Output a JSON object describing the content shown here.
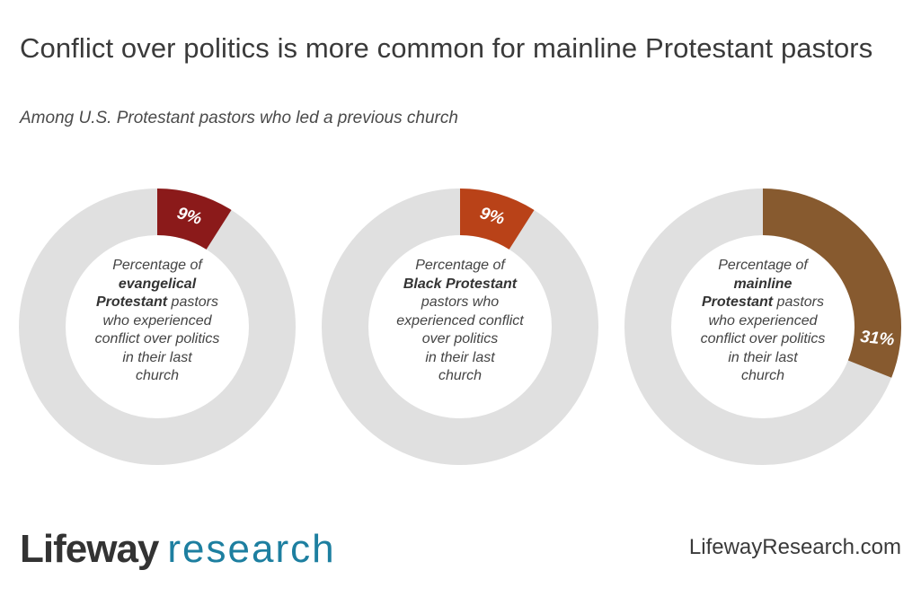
{
  "header": {
    "title": "Conflict over politics is more common for mainline Protestant pastors",
    "subtitle": "Among U.S. Protestant pastors who led a previous church"
  },
  "chart_data": [
    {
      "type": "pie",
      "variant": "donut",
      "value": 9,
      "value_label": "9%",
      "color": "#8b1a1a",
      "track_color": "#e0e0e0",
      "label_lines": [
        {
          "segs": [
            {
              "t": "Percentage of",
              "b": false
            }
          ]
        },
        {
          "segs": [
            {
              "t": "evangelical",
              "b": true
            }
          ]
        },
        {
          "segs": [
            {
              "t": "Protestant",
              "b": true
            },
            {
              "t": " pastors",
              "b": false
            }
          ]
        },
        {
          "segs": [
            {
              "t": "who experienced",
              "b": false
            }
          ]
        },
        {
          "segs": [
            {
              "t": "conflict over politics",
              "b": false
            }
          ]
        },
        {
          "segs": [
            {
              "t": "in their last",
              "b": false
            }
          ]
        },
        {
          "segs": [
            {
              "t": "church",
              "b": false
            }
          ]
        }
      ]
    },
    {
      "type": "pie",
      "variant": "donut",
      "value": 9,
      "value_label": "9%",
      "color": "#b94218",
      "track_color": "#e0e0e0",
      "label_lines": [
        {
          "segs": [
            {
              "t": "Percentage of",
              "b": false
            }
          ]
        },
        {
          "segs": [
            {
              "t": "Black Protestant",
              "b": true
            }
          ]
        },
        {
          "segs": [
            {
              "t": "pastors who",
              "b": false
            }
          ]
        },
        {
          "segs": [
            {
              "t": "experienced conflict",
              "b": false
            }
          ]
        },
        {
          "segs": [
            {
              "t": "over politics",
              "b": false
            }
          ]
        },
        {
          "segs": [
            {
              "t": "in their last",
              "b": false
            }
          ]
        },
        {
          "segs": [
            {
              "t": "church",
              "b": false
            }
          ]
        }
      ]
    },
    {
      "type": "pie",
      "variant": "donut",
      "value": 31,
      "value_label": "31%",
      "color": "#875a2f",
      "track_color": "#e0e0e0",
      "label_lines": [
        {
          "segs": [
            {
              "t": "Percentage of",
              "b": false
            }
          ]
        },
        {
          "segs": [
            {
              "t": "mainline",
              "b": true
            }
          ]
        },
        {
          "segs": [
            {
              "t": "Protestant",
              "b": true
            },
            {
              "t": " pastors",
              "b": false
            }
          ]
        },
        {
          "segs": [
            {
              "t": "who experienced",
              "b": false
            }
          ]
        },
        {
          "segs": [
            {
              "t": "conflict over politics",
              "b": false
            }
          ]
        },
        {
          "segs": [
            {
              "t": "in their last",
              "b": false
            }
          ]
        },
        {
          "segs": [
            {
              "t": "church",
              "b": false
            }
          ]
        }
      ]
    }
  ],
  "footer": {
    "logo_word1": "Lifeway",
    "logo_word2": "research",
    "logo_color": "#1d7fa0",
    "website": "LifewayResearch.com"
  }
}
